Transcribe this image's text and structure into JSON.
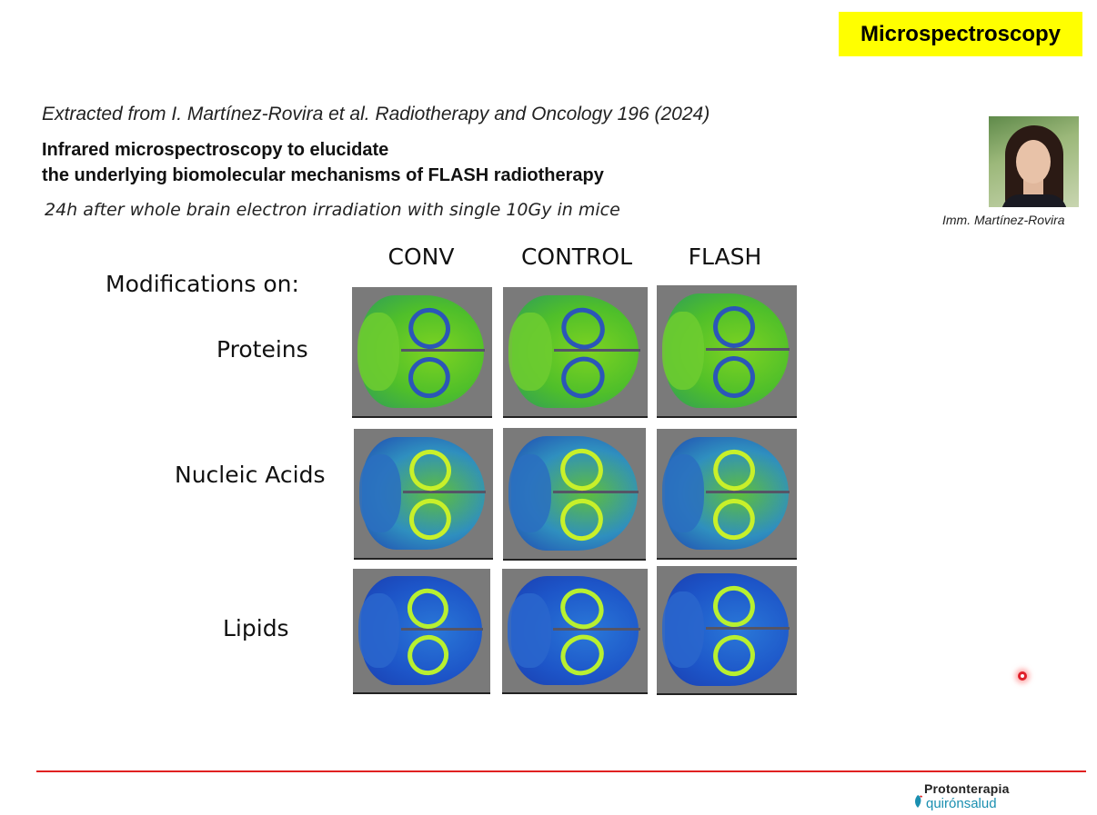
{
  "badge": {
    "label": "Microspectroscopy",
    "color": "#ffff00"
  },
  "citation": "Extracted from I. Martínez-Rovira et al. Radiotherapy and Oncology 196 (2024)",
  "title": {
    "line1": "Infrared microspectroscopy to elucidate",
    "line2": "the underlying biomolecular mechanisms of FLASH radiotherapy"
  },
  "subtitle": "24h after whole brain electron irradiation with single 10Gy in mice",
  "photo": {
    "caption": "Imm. Martínez-Rovira"
  },
  "grid": {
    "heading": "Modifications on:",
    "columns": [
      "CONV",
      "CONTROL",
      "FLASH"
    ],
    "rows": [
      "Proteins",
      "Nucleic Acids",
      "Lipids"
    ]
  },
  "logo": {
    "line1": "Protonterapia",
    "line2": "quirónsalud"
  },
  "colors": {
    "divider": "#e02020",
    "accent": "#1a8fb0"
  }
}
